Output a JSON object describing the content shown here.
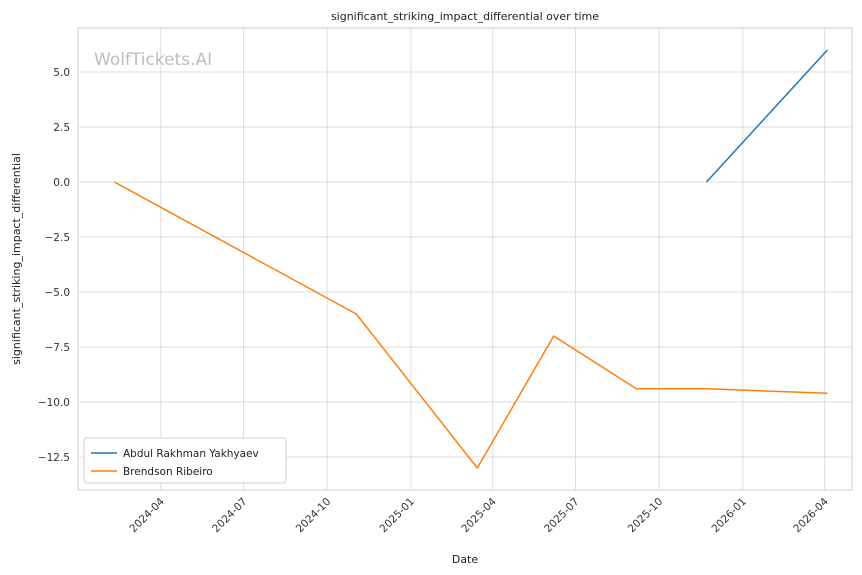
{
  "chart_data": {
    "type": "line",
    "title": "significant_striking_impact_differential over time",
    "xlabel": "Date",
    "ylabel": "significant_striking_impact_differential",
    "watermark": "WolfTickets.AI",
    "xlim": [
      "2024-01-01",
      "2026-05-01"
    ],
    "ylim": [
      -14,
      7
    ],
    "x_ticks": [
      "2024-04",
      "2024-07",
      "2024-10",
      "2025-01",
      "2025-04",
      "2025-07",
      "2025-10",
      "2026-01",
      "2026-04"
    ],
    "y_ticks": [
      "5.0",
      "2.5",
      "0.0",
      "−2.5",
      "−5.0",
      "−7.5",
      "−10.0",
      "−12.5"
    ],
    "y_tick_values": [
      5.0,
      2.5,
      0.0,
      -2.5,
      -5.0,
      -7.5,
      -10.0,
      -12.5
    ],
    "grid": true,
    "legend_position": "lower-left",
    "series": [
      {
        "name": "Abdul Rakhman Yakhyaev",
        "color": "#1f77b4",
        "x": [
          "2025-11-22",
          "2026-04-04"
        ],
        "y": [
          0,
          6
        ]
      },
      {
        "name": "Brendson Ribeiro",
        "color": "#ff7f0e",
        "x": [
          "2024-02-10",
          "2024-11-02",
          "2025-03-15",
          "2025-06-07",
          "2025-09-06",
          "2025-11-22",
          "2026-04-04"
        ],
        "y": [
          0,
          -6,
          -13,
          -7,
          -9.4,
          -9.4,
          -9.6
        ]
      }
    ]
  }
}
